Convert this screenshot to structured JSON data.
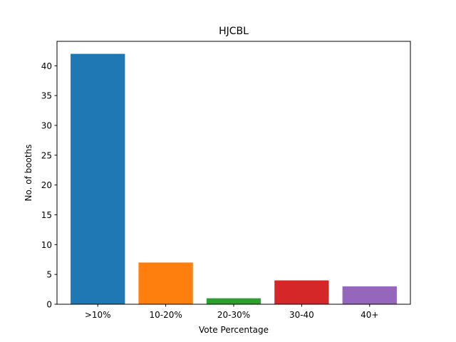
{
  "chart_data": {
    "type": "bar",
    "title": "HJCBL",
    "xlabel": "Vote Percentage",
    "ylabel": "No. of booths",
    "categories": [
      ">10%",
      "10-20%",
      "20-30%",
      "30-40",
      "40+"
    ],
    "values": [
      42,
      7,
      1,
      4,
      3
    ],
    "colors": [
      "#1f77b4",
      "#ff7f0e",
      "#2ca02c",
      "#d62728",
      "#9467bd"
    ],
    "ylim": [
      0,
      44.1
    ],
    "yticks": [
      0,
      5,
      10,
      15,
      20,
      25,
      30,
      35,
      40
    ],
    "grid": false,
    "legend": false
  }
}
